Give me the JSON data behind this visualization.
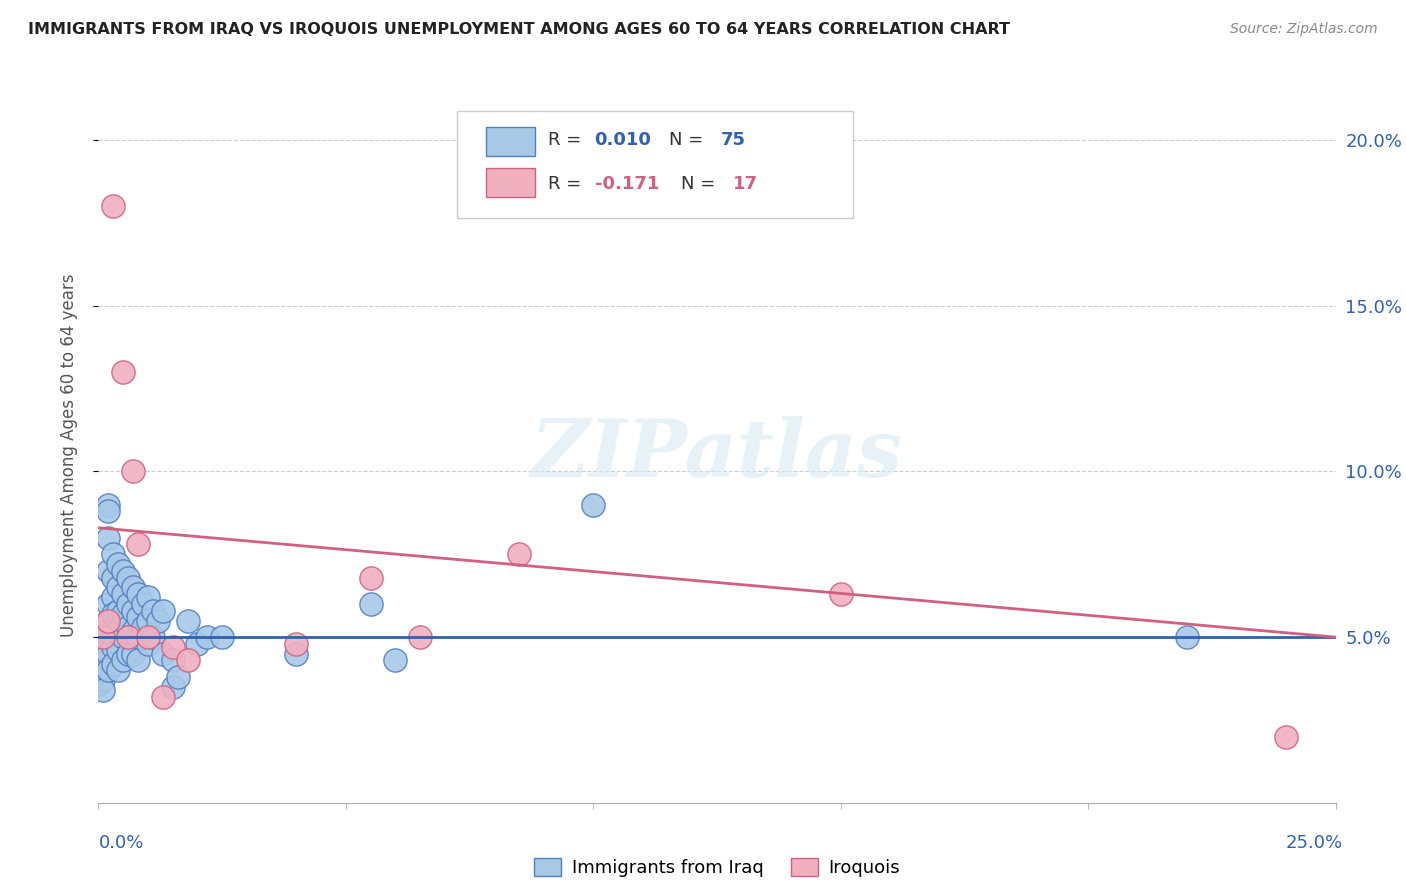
{
  "title": "IMMIGRANTS FROM IRAQ VS IROQUOIS UNEMPLOYMENT AMONG AGES 60 TO 64 YEARS CORRELATION CHART",
  "source": "Source: ZipAtlas.com",
  "ylabel": "Unemployment Among Ages 60 to 64 years",
  "ylabel_right_ticks": [
    "20.0%",
    "15.0%",
    "10.0%",
    "5.0%"
  ],
  "ylabel_right_vals": [
    0.2,
    0.15,
    0.1,
    0.05
  ],
  "xlim": [
    0.0,
    0.25
  ],
  "ylim": [
    0.0,
    0.21
  ],
  "iraq_color": "#a8c8e8",
  "iraq_edge_color": "#5080c0",
  "iraq_line_color": "#3060b0",
  "iroquois_color": "#f0b0c0",
  "iroquois_edge_color": "#d06080",
  "iroquois_line_color": "#d06080",
  "watermark_text": "ZIPatlas",
  "iraq_x": [
    0.0,
    0.0,
    0.0,
    0.0,
    0.0,
    0.001,
    0.001,
    0.001,
    0.001,
    0.001,
    0.001,
    0.001,
    0.001,
    0.001,
    0.002,
    0.002,
    0.002,
    0.002,
    0.002,
    0.002,
    0.002,
    0.002,
    0.002,
    0.003,
    0.003,
    0.003,
    0.003,
    0.003,
    0.003,
    0.003,
    0.004,
    0.004,
    0.004,
    0.004,
    0.004,
    0.004,
    0.005,
    0.005,
    0.005,
    0.005,
    0.005,
    0.006,
    0.006,
    0.006,
    0.006,
    0.007,
    0.007,
    0.007,
    0.007,
    0.008,
    0.008,
    0.008,
    0.008,
    0.009,
    0.009,
    0.01,
    0.01,
    0.01,
    0.011,
    0.011,
    0.012,
    0.013,
    0.013,
    0.015,
    0.015,
    0.016,
    0.018,
    0.02,
    0.022,
    0.025,
    0.04,
    0.055,
    0.06,
    0.1,
    0.22
  ],
  "iraq_y": [
    0.05,
    0.047,
    0.043,
    0.04,
    0.036,
    0.052,
    0.049,
    0.046,
    0.043,
    0.04,
    0.037,
    0.034,
    0.052,
    0.049,
    0.09,
    0.088,
    0.08,
    0.07,
    0.06,
    0.055,
    0.05,
    0.045,
    0.04,
    0.075,
    0.068,
    0.062,
    0.057,
    0.052,
    0.047,
    0.042,
    0.072,
    0.065,
    0.058,
    0.052,
    0.046,
    0.04,
    0.07,
    0.063,
    0.057,
    0.05,
    0.043,
    0.068,
    0.06,
    0.053,
    0.045,
    0.065,
    0.058,
    0.052,
    0.045,
    0.063,
    0.056,
    0.05,
    0.043,
    0.06,
    0.053,
    0.062,
    0.055,
    0.048,
    0.058,
    0.05,
    0.055,
    0.058,
    0.045,
    0.043,
    0.035,
    0.038,
    0.055,
    0.048,
    0.05,
    0.05,
    0.045,
    0.06,
    0.043,
    0.09,
    0.05
  ],
  "iroquois_x": [
    0.001,
    0.002,
    0.003,
    0.005,
    0.006,
    0.007,
    0.008,
    0.01,
    0.013,
    0.015,
    0.018,
    0.04,
    0.055,
    0.065,
    0.085,
    0.15,
    0.24
  ],
  "iroquois_y": [
    0.05,
    0.055,
    0.18,
    0.13,
    0.05,
    0.1,
    0.078,
    0.05,
    0.032,
    0.047,
    0.043,
    0.048,
    0.068,
    0.05,
    0.075,
    0.063,
    0.02
  ],
  "iraq_trend_x": [
    0.0,
    0.25
  ],
  "iraq_trend_y": [
    0.05,
    0.05
  ],
  "iro_trend_x": [
    0.0,
    0.25
  ],
  "iro_trend_y": [
    0.083,
    0.05
  ]
}
